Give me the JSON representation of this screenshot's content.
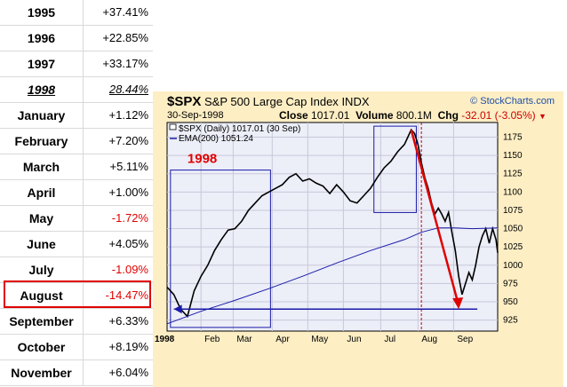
{
  "returns_table": {
    "rows": [
      {
        "label": "1995",
        "value": "+37.41%",
        "neg": false
      },
      {
        "label": "1996",
        "value": "+22.85%",
        "neg": false
      },
      {
        "label": "1997",
        "value": "+33.17%",
        "neg": false
      },
      {
        "label": "1998",
        "value": "28.44%",
        "neg": false,
        "underline": true
      },
      {
        "label": "January",
        "value": "+1.12%",
        "neg": false
      },
      {
        "label": "February",
        "value": "+7.20%",
        "neg": false
      },
      {
        "label": "March",
        "value": "+5.11%",
        "neg": false
      },
      {
        "label": "April",
        "value": "+1.00%",
        "neg": false
      },
      {
        "label": "May",
        "value": "-1.72%",
        "neg": true
      },
      {
        "label": "June",
        "value": "+4.05%",
        "neg": false
      },
      {
        "label": "July",
        "value": "-1.09%",
        "neg": true
      },
      {
        "label": "August",
        "value": "-14.47%",
        "neg": true
      },
      {
        "label": "September",
        "value": "+6.33%",
        "neg": false
      },
      {
        "label": "October",
        "value": "+8.19%",
        "neg": false
      },
      {
        "label": "November",
        "value": "+6.04%",
        "neg": false
      }
    ],
    "highlighted_row": "August",
    "highlight_color": "#e00000"
  },
  "chart_header": {
    "symbol": "$SPX",
    "name": "S&P 500 Large Cap Index",
    "exchange": "INDX",
    "credit": "© StockCharts.com",
    "date": "30-Sep-1998",
    "close_label": "Close",
    "close_value": "1017.01",
    "volume_label": "Volume",
    "volume_value": "800.1M",
    "chg_label": "Chg",
    "chg_value": "-32.01 (-3.05%)"
  },
  "chart_data": {
    "type": "line",
    "title": "$SPX S&P 500 Large Cap Index INDX",
    "x_unit": "trading-day index (1998)",
    "y_range": [
      910,
      1195
    ],
    "x_tick_labels": [
      "1998",
      "Feb",
      "Mar",
      "Apr",
      "May",
      "Jun",
      "Jul",
      "Aug",
      "Sep"
    ],
    "y_tick_labels": [
      "925",
      "950",
      "975",
      "1000",
      "1025",
      "1050",
      "1075",
      "1100",
      "1125",
      "1150",
      "1175"
    ],
    "legend": [
      {
        "name": "$SPX (Daily) 1017.01 (30 Sep)",
        "color": "#000000"
      },
      {
        "name": "EMA(200) 1051.24",
        "color": "#1a1aa8"
      }
    ],
    "annotation": "1998",
    "series": [
      {
        "name": "$SPX (Daily)",
        "color": "#000000",
        "points": [
          [
            0,
            970
          ],
          [
            4,
            960
          ],
          [
            8,
            940
          ],
          [
            12,
            930
          ],
          [
            16,
            965
          ],
          [
            20,
            985
          ],
          [
            24,
            1000
          ],
          [
            28,
            1020
          ],
          [
            32,
            1035
          ],
          [
            36,
            1048
          ],
          [
            40,
            1050
          ],
          [
            44,
            1060
          ],
          [
            48,
            1075
          ],
          [
            52,
            1085
          ],
          [
            56,
            1095
          ],
          [
            60,
            1100
          ],
          [
            64,
            1105
          ],
          [
            68,
            1110
          ],
          [
            72,
            1120
          ],
          [
            76,
            1125
          ],
          [
            80,
            1115
          ],
          [
            84,
            1118
          ],
          [
            88,
            1112
          ],
          [
            92,
            1108
          ],
          [
            96,
            1098
          ],
          [
            100,
            1110
          ],
          [
            104,
            1100
          ],
          [
            108,
            1088
          ],
          [
            112,
            1085
          ],
          [
            116,
            1095
          ],
          [
            120,
            1105
          ],
          [
            124,
            1120
          ],
          [
            128,
            1133
          ],
          [
            132,
            1142
          ],
          [
            136,
            1155
          ],
          [
            140,
            1165
          ],
          [
            142,
            1175
          ],
          [
            144,
            1185
          ],
          [
            146,
            1180
          ],
          [
            148,
            1165
          ],
          [
            150,
            1140
          ],
          [
            152,
            1120
          ],
          [
            154,
            1105
          ],
          [
            156,
            1085
          ],
          [
            158,
            1070
          ],
          [
            160,
            1078
          ],
          [
            162,
            1070
          ],
          [
            164,
            1060
          ],
          [
            166,
            1072
          ],
          [
            168,
            1045
          ],
          [
            170,
            1020
          ],
          [
            172,
            985
          ],
          [
            174,
            960
          ],
          [
            176,
            975
          ],
          [
            178,
            990
          ],
          [
            180,
            980
          ],
          [
            182,
            1000
          ],
          [
            184,
            1025
          ],
          [
            186,
            1040
          ],
          [
            188,
            1050
          ],
          [
            190,
            1030
          ],
          [
            192,
            1050
          ],
          [
            194,
            1035
          ],
          [
            195,
            1017
          ]
        ]
      },
      {
        "name": "EMA(200)",
        "color": "#1a1aa8",
        "points": [
          [
            0,
            920
          ],
          [
            20,
            937
          ],
          [
            40,
            952
          ],
          [
            60,
            968
          ],
          [
            80,
            985
          ],
          [
            100,
            1003
          ],
          [
            120,
            1020
          ],
          [
            140,
            1035
          ],
          [
            150,
            1045
          ],
          [
            160,
            1051
          ],
          [
            170,
            1051
          ],
          [
            180,
            1050
          ],
          [
            195,
            1051
          ]
        ]
      }
    ]
  },
  "overlays": {
    "arrow_color": "#e00000",
    "box_color": "#1a1aa8",
    "vline_color": "#cc0000"
  }
}
